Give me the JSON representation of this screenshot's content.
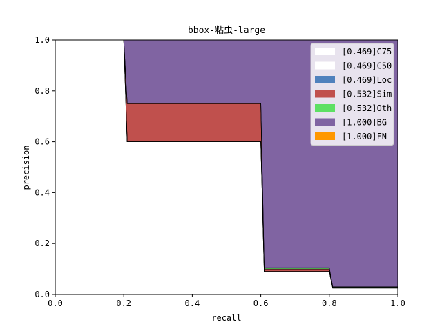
{
  "chart_data": {
    "type": "area",
    "title": "bbox-粘虫-large",
    "xlabel": "recall",
    "ylabel": "precision",
    "xlim": [
      0,
      1
    ],
    "ylim": [
      0,
      1
    ],
    "xticks": [
      "0.0",
      "0.2",
      "0.4",
      "0.6",
      "0.8",
      "1.0"
    ],
    "yticks": [
      "0.0",
      "0.2",
      "0.4",
      "0.6",
      "0.8",
      "1.0"
    ],
    "grid": false,
    "legend_position": "top-right",
    "recall": [
      0,
      0.2,
      0.21,
      0.6,
      0.61,
      0.8,
      0.81,
      1.0
    ],
    "series": [
      {
        "name": "[0.469]C75",
        "color": "#ffffff",
        "precision": [
          1.0,
          1.0,
          0.6,
          0.6,
          0.09,
          0.09,
          0.025,
          0.025
        ]
      },
      {
        "name": "[0.469]C50",
        "color": "#ffffff",
        "precision": [
          1.0,
          1.0,
          0.6,
          0.6,
          0.09,
          0.09,
          0.025,
          0.025
        ]
      },
      {
        "name": "[0.469]Loc",
        "color": "#4f81bd",
        "precision": [
          1.0,
          1.0,
          0.6,
          0.6,
          0.09,
          0.09,
          0.025,
          0.025
        ]
      },
      {
        "name": "[0.532]Sim",
        "color": "#c0504d",
        "precision": [
          1.0,
          1.0,
          0.75,
          0.75,
          0.1,
          0.1,
          0.028,
          0.028
        ]
      },
      {
        "name": "[0.532]Oth",
        "color": "#5ee063",
        "precision": [
          1.0,
          1.0,
          0.75,
          0.75,
          0.105,
          0.105,
          0.03,
          0.03
        ]
      },
      {
        "name": "[1.000]BG",
        "color": "#8064a2",
        "precision": [
          1.0,
          1.0,
          1.0,
          1.0,
          1.0,
          1.0,
          1.0,
          1.0
        ]
      },
      {
        "name": "[1.000]FN",
        "color": "#ff9800",
        "precision": [
          1.0,
          1.0,
          1.0,
          1.0,
          1.0,
          1.0,
          1.0,
          1.0
        ]
      }
    ]
  }
}
